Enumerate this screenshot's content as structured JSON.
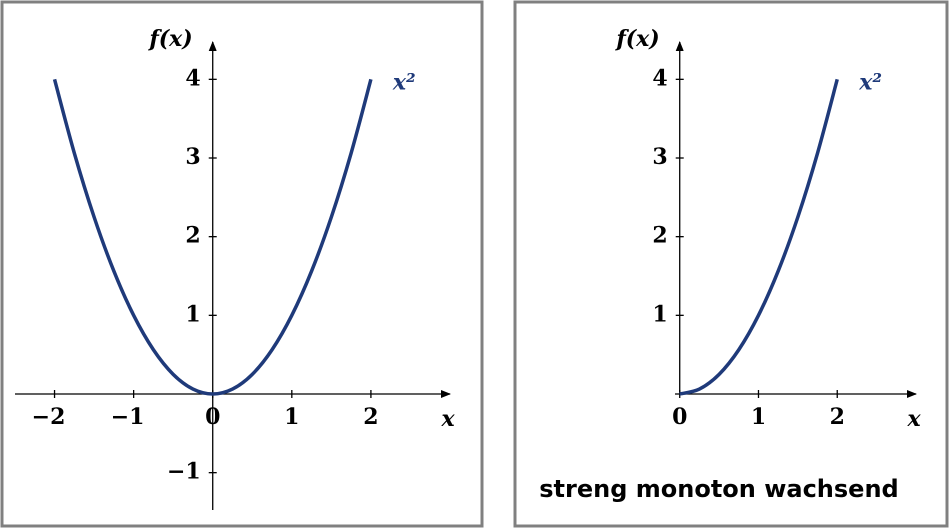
{
  "chart_data": [
    {
      "type": "line",
      "x_label": "x",
      "y_label": "f(x)",
      "x": [
        -2,
        -1.75,
        -1.5,
        -1.25,
        -1,
        -0.75,
        -0.5,
        -0.25,
        0,
        0.25,
        0.5,
        0.75,
        1,
        1.25,
        1.5,
        1.75,
        2
      ],
      "series": [
        {
          "name": "x²",
          "color": "#1f3a7a",
          "values": [
            4,
            3.0625,
            2.25,
            1.5625,
            1,
            0.5625,
            0.25,
            0.0625,
            0,
            0.0625,
            0.25,
            0.5625,
            1,
            1.5625,
            2.25,
            3.0625,
            4
          ]
        }
      ],
      "xlim": [
        -2.5,
        3.0
      ],
      "ylim": [
        -1.5,
        4.5
      ],
      "xticks": [
        {
          "value": -2,
          "label": "−2"
        },
        {
          "value": -1,
          "label": "−1"
        },
        0,
        1,
        2
      ],
      "yticks": [
        {
          "value": -1,
          "label": "−1"
        },
        1,
        2,
        3,
        4
      ]
    },
    {
      "type": "line",
      "x_label": "x",
      "y_label": "f(x)",
      "caption": "streng monoton wachsend",
      "x": [
        0,
        0.25,
        0.5,
        0.75,
        1,
        1.25,
        1.5,
        1.75,
        2
      ],
      "series": [
        {
          "name": "x²",
          "color": "#1f3a7a",
          "values": [
            0,
            0.0625,
            0.25,
            0.5625,
            1,
            1.5625,
            2.25,
            3.0625,
            4
          ]
        }
      ],
      "xlim": [
        -0.06,
        3.0
      ],
      "ylim": [
        0,
        4.5
      ],
      "xticks": [
        0,
        1,
        2
      ],
      "yticks": [
        1,
        2,
        3,
        4
      ]
    }
  ]
}
